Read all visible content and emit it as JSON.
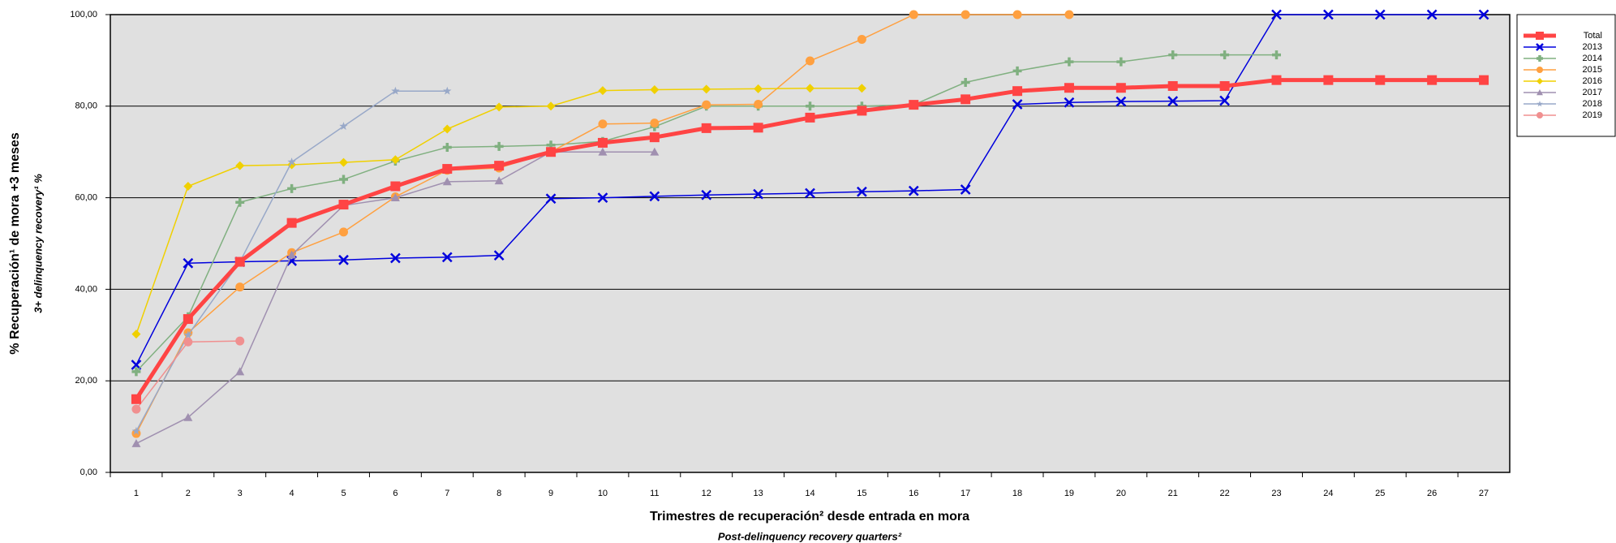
{
  "chart_data": {
    "type": "line",
    "y_label": "% Recuperación¹ de mora +3 meses",
    "y_sublabel": "3+ delinquency recovery¹ %",
    "x_label": "Trimestres de recuperación² desde entrada en mora",
    "x_sublabel": "Post-delinquency recovery quarters²",
    "categories": [
      "1",
      "2",
      "3",
      "4",
      "5",
      "6",
      "7",
      "8",
      "9",
      "10",
      "11",
      "12",
      "13",
      "14",
      "15",
      "16",
      "17",
      "18",
      "19",
      "20",
      "21",
      "22",
      "23",
      "24",
      "25",
      "26",
      "27"
    ],
    "ylim": [
      0,
      100
    ],
    "yticks": [
      {
        "value": 0,
        "label": "0,00"
      },
      {
        "value": 20,
        "label": "20,00"
      },
      {
        "value": 40,
        "label": "40,00"
      },
      {
        "value": 60,
        "label": "60,00"
      },
      {
        "value": 80,
        "label": "80,00"
      },
      {
        "value": 100,
        "label": "100,00"
      }
    ],
    "grid": true,
    "background": "#e0e0e0",
    "legend": "right",
    "series": [
      {
        "name": "Total",
        "color": "#ff4444",
        "width": 5,
        "marker": "square",
        "values": [
          16,
          33.5,
          46,
          54.5,
          58.5,
          62.5,
          66.3,
          67,
          70,
          72,
          73.2,
          75.2,
          75.3,
          77.5,
          79,
          80.3,
          81.5,
          83.3,
          84,
          84,
          84.4,
          84.4,
          85.7,
          85.7,
          85.7,
          85.7,
          85.7
        ]
      },
      {
        "name": "2013",
        "color": "#0000dd",
        "width": 1.5,
        "marker": "x",
        "values": [
          23.5,
          45.7,
          46,
          46.2,
          46.4,
          46.8,
          47,
          47.4,
          59.8,
          60,
          60.3,
          60.6,
          60.8,
          61,
          61.3,
          61.5,
          61.8,
          80.4,
          80.8,
          81,
          81.1,
          81.2,
          100,
          100,
          100,
          100,
          100
        ]
      },
      {
        "name": "2014",
        "color": "#80b080",
        "width": 1.5,
        "marker": "plus",
        "values": [
          22,
          34,
          59,
          62,
          64,
          68,
          71,
          71.2,
          71.5,
          72.3,
          75.5,
          80,
          80,
          80,
          80,
          80.3,
          85.2,
          87.7,
          89.7,
          89.7,
          91.2,
          91.2,
          91.2,
          null,
          null,
          null,
          null
        ]
      },
      {
        "name": "2015",
        "color": "#ffa040",
        "width": 1.5,
        "marker": "circle",
        "values": [
          8.5,
          30.5,
          40.5,
          48,
          52.5,
          60.2,
          66,
          66.5,
          70,
          76.1,
          76.3,
          80.3,
          80.4,
          89.9,
          94.6,
          100,
          100,
          100,
          100,
          null,
          null,
          null,
          null,
          null,
          null,
          null,
          null
        ]
      },
      {
        "name": "2016",
        "color": "#f0d000",
        "width": 1.5,
        "marker": "diamond",
        "values": [
          30.2,
          62.5,
          67,
          67.2,
          67.7,
          68.3,
          75,
          79.8,
          80,
          83.4,
          83.6,
          83.7,
          83.8,
          83.9,
          83.9,
          null,
          null,
          null,
          null,
          null,
          null,
          null,
          null,
          null,
          null,
          null,
          null
        ]
      },
      {
        "name": "2017",
        "color": "#a090b0",
        "width": 1.5,
        "marker": "triangle",
        "values": [
          6.3,
          12,
          22,
          47.5,
          58.3,
          60,
          63.5,
          63.7,
          70,
          70,
          70,
          null,
          null,
          null,
          null,
          null,
          null,
          null,
          null,
          null,
          null,
          null,
          null,
          null,
          null,
          null,
          null
        ]
      },
      {
        "name": "2018",
        "color": "#98a8c8",
        "width": 1.5,
        "marker": "star",
        "values": [
          9,
          30,
          46,
          67.8,
          75.6,
          83.3,
          83.3,
          null,
          null,
          null,
          null,
          null,
          null,
          null,
          null,
          null,
          null,
          null,
          null,
          null,
          null,
          null,
          null,
          null,
          null,
          null,
          null
        ]
      },
      {
        "name": "2019",
        "color": "#f09090",
        "width": 1.5,
        "marker": "circle",
        "values": [
          13.8,
          28.5,
          28.7,
          null,
          null,
          null,
          null,
          null,
          null,
          null,
          null,
          null,
          null,
          null,
          null,
          null,
          null,
          null,
          null,
          null,
          null,
          null,
          null,
          null,
          null,
          null,
          null
        ]
      }
    ]
  }
}
